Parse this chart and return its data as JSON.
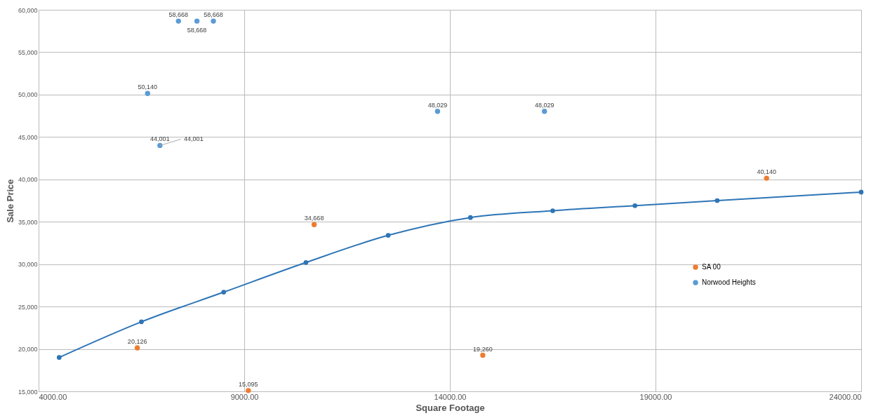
{
  "chart_data": {
    "type": "scatter",
    "xlabel": "Square Footage",
    "ylabel": "Sale Price",
    "xlim": [
      4000,
      24000
    ],
    "xticks": [
      {
        "value": 4000,
        "label": "4000.00"
      },
      {
        "value": 9000,
        "label": "9000.00"
      },
      {
        "value": 14000,
        "label": "14000.00"
      },
      {
        "value": 19000,
        "label": "19000.00"
      },
      {
        "value": 24000,
        "label": "24000.00"
      }
    ],
    "ylim": [
      15000,
      60000
    ],
    "yticks": [
      {
        "value": 15000,
        "label": "15,000"
      },
      {
        "value": 20000,
        "label": "20,000"
      },
      {
        "value": 25000,
        "label": "25,000"
      },
      {
        "value": 30000,
        "label": "30,000"
      },
      {
        "value": 35000,
        "label": "35,000"
      },
      {
        "value": 40000,
        "label": "40,000"
      },
      {
        "value": 45000,
        "label": "45,000"
      },
      {
        "value": 50000,
        "label": "50,000"
      },
      {
        "value": 55000,
        "label": "55,000"
      },
      {
        "value": 60000,
        "label": "60,000"
      }
    ],
    "grid": true,
    "legend": "bottom right",
    "marker": "circle",
    "annotations": [
      {
        "text": "44,001",
        "x": 6950,
        "y": 44001
      }
    ],
    "series": [
      {
        "name": "SA 00",
        "color": "#ed7d31",
        "x": [
          6400,
          9100,
          10700,
          14800,
          21700
        ],
        "values": [
          20126,
          15095,
          34668,
          19260,
          40140
        ],
        "value_labels": [
          "20,126",
          "15,095",
          "34,668",
          "19,260",
          "40,140"
        ]
      },
      {
        "name": "Norwood Heights",
        "color": "#5b9bd5",
        "x": [
          7400,
          7850,
          8250,
          6650,
          6950,
          13700,
          16300
        ],
        "values": [
          58668,
          58668,
          58668,
          50140,
          44001,
          48029,
          48029
        ],
        "value_labels": [
          "58,668",
          "58,668",
          "58,668",
          "50,140",
          "44,001",
          "48,029",
          "48,029"
        ]
      },
      {
        "type": "line",
        "color": "#2e75b6",
        "x": [
          4500,
          6500,
          8500,
          10500,
          12500,
          14500,
          16500,
          18500,
          20500,
          24000
        ],
        "values": [
          19000,
          23200,
          26700,
          30200,
          33400,
          35500,
          36300,
          36900,
          37500,
          38500
        ]
      }
    ]
  }
}
